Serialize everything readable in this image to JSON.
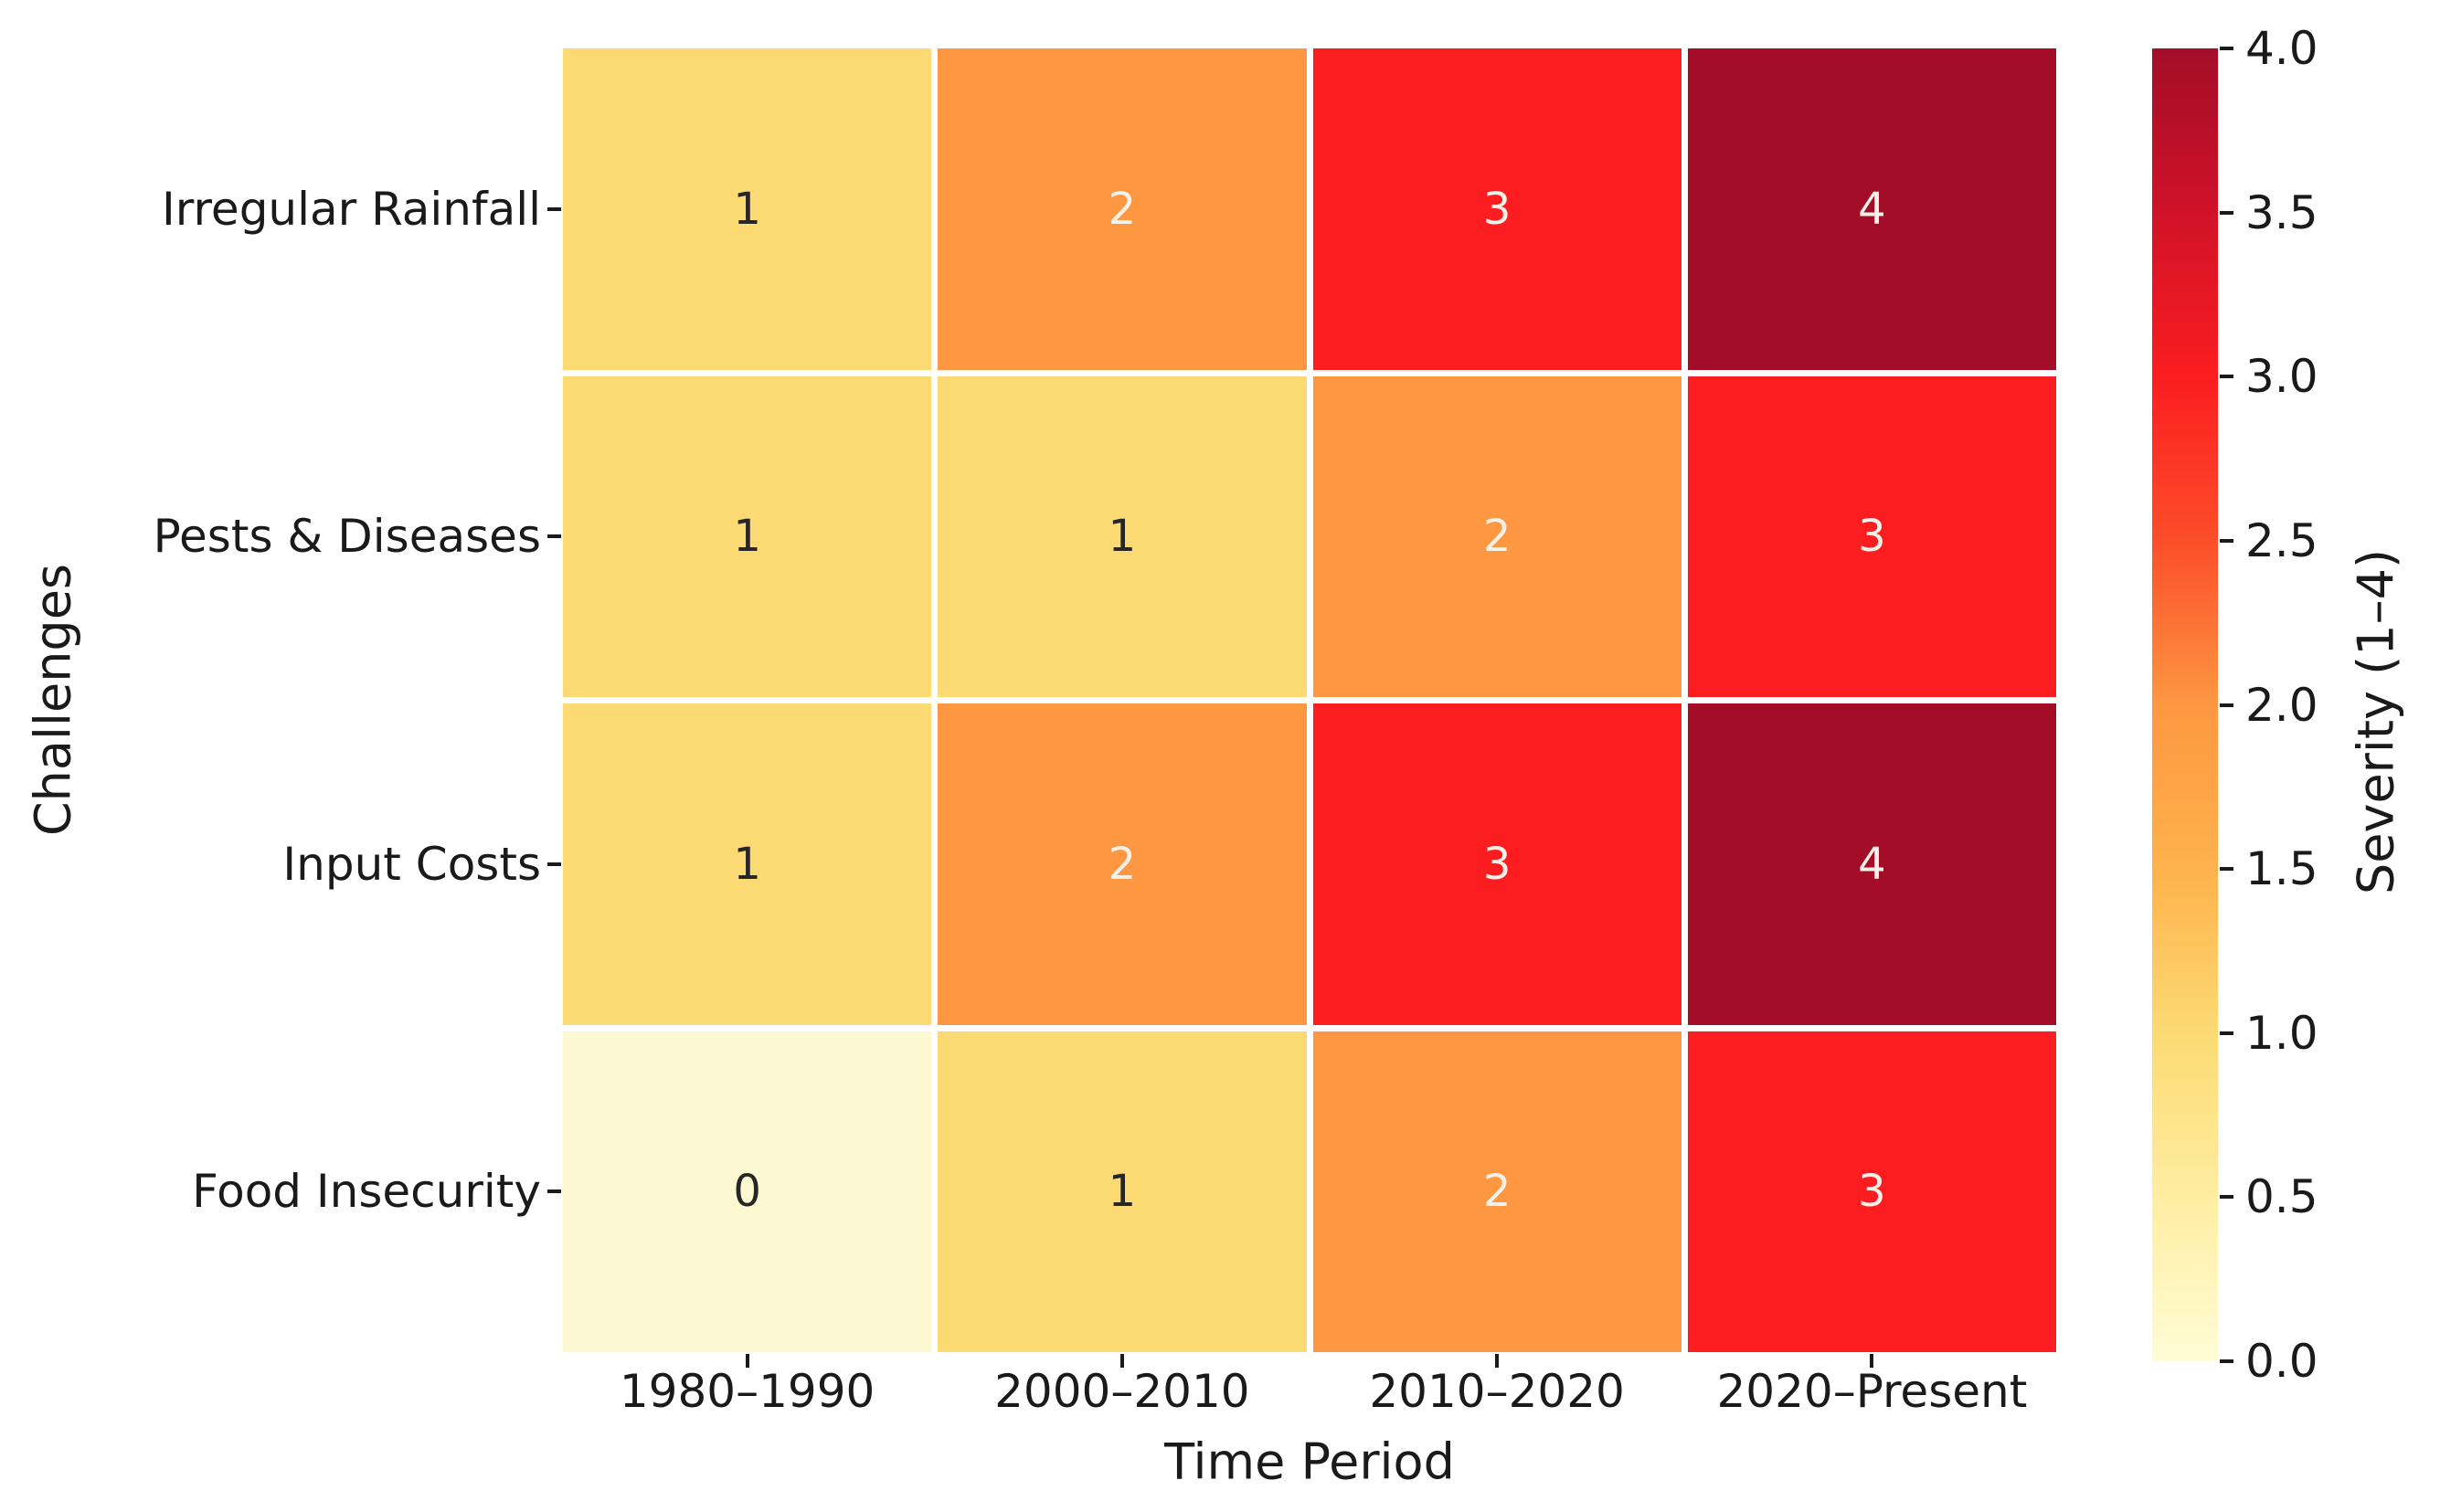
{
  "chart_data": {
    "type": "heatmap",
    "xlabel": "Time Period",
    "ylabel": "Challenges",
    "categories_x": [
      "1980–1990",
      "2000–2010",
      "2010–2020",
      "2020–Present"
    ],
    "categories_y": [
      "Irregular Rainfall",
      "Pests & Diseases",
      "Input Costs",
      "Food Insecurity"
    ],
    "values": [
      [
        1,
        2,
        3,
        4
      ],
      [
        1,
        1,
        2,
        3
      ],
      [
        1,
        2,
        3,
        4
      ],
      [
        0,
        1,
        2,
        3
      ]
    ],
    "annotations_shown": true,
    "grid_line_color": "#ffffff",
    "value_cell_colors": {
      "0": "#fcf9d2",
      "1": "#fcda73",
      "2": "#fd9741",
      "3": "#fb1d20",
      "4": "#a30d28"
    },
    "annotation_text_colors": {
      "dark": "#262626",
      "light": "#f5f0e8",
      "light_min_value": 2
    },
    "colorbar": {
      "label": "Severity (1–4)",
      "vmin": 0.0,
      "vmax": 4.0,
      "colormap": "YlOrRd",
      "tick_labels": [
        "4.0",
        "3.5",
        "3.0",
        "2.5",
        "2.0",
        "1.5",
        "1.0",
        "0.5",
        "0.0"
      ],
      "gradient_bottom_to_top": [
        "#fffcd6",
        "#ffeda1",
        "#fcda73",
        "#feb24c",
        "#fd9741",
        "#fc4e2a",
        "#fb1d20",
        "#d01228",
        "#a30d28"
      ]
    },
    "legend_position": "right",
    "grid_on": false
  }
}
